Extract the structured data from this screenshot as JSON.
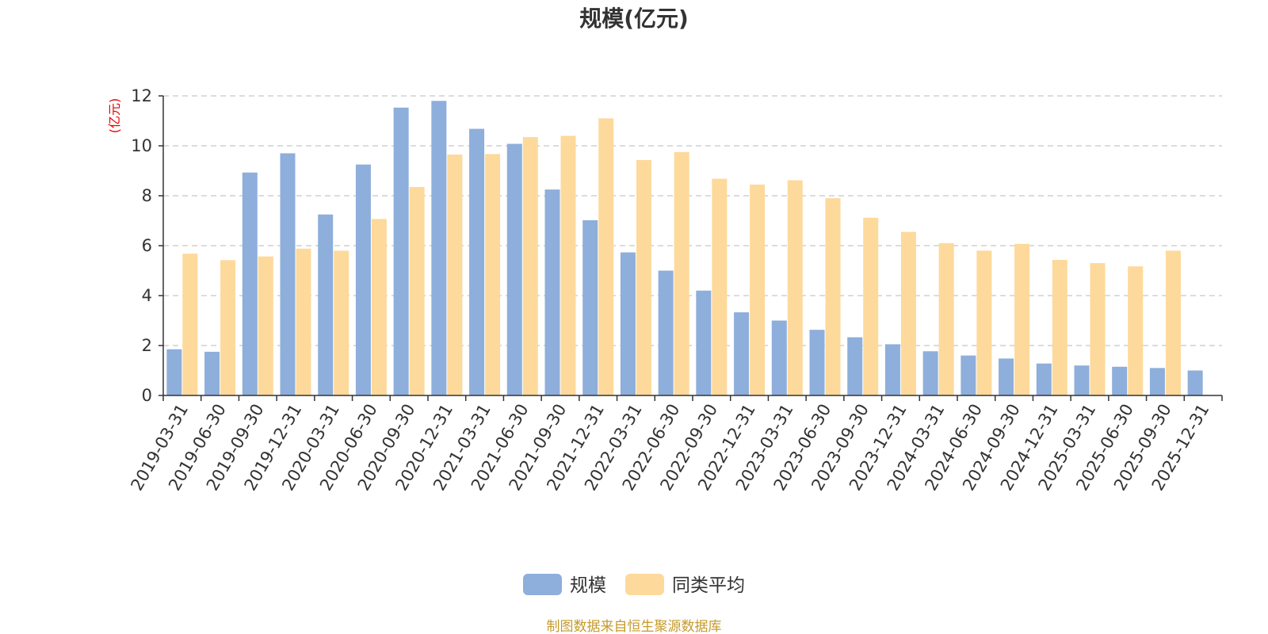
{
  "chart_data": {
    "type": "bar",
    "title": "规模(亿元)",
    "ylabel": "(亿元)",
    "ylim": [
      0,
      12
    ],
    "yticks": [
      "0",
      "2",
      "4",
      "6",
      "8",
      "10",
      "12"
    ],
    "grid": true,
    "legend_position": "bottom-center",
    "categories": [
      "2019-03-31",
      "2019-06-30",
      "2019-09-30",
      "2019-12-31",
      "2020-03-31",
      "2020-06-30",
      "2020-09-30",
      "2020-12-31",
      "2021-03-31",
      "2021-06-30",
      "2021-09-30",
      "2021-12-31",
      "2022-03-31",
      "2022-06-30",
      "2022-09-30",
      "2022-12-31",
      "2023-03-31",
      "2023-06-30",
      "2023-09-30",
      "2023-12-31",
      "2024-03-31",
      "2024-06-30",
      "2024-09-30",
      "2024-12-31",
      "2025-03-31",
      "2025-06-30",
      "2025-09-30",
      "2025-12-31"
    ],
    "series": [
      {
        "name": "规模",
        "color": "#8eaedb",
        "values": [
          1.85,
          1.75,
          8.93,
          9.7,
          7.25,
          9.25,
          11.53,
          11.8,
          10.68,
          10.08,
          8.25,
          7.02,
          5.73,
          5.0,
          4.2,
          3.33,
          3.0,
          2.63,
          2.33,
          2.05,
          1.77,
          1.6,
          1.48,
          1.28,
          1.2,
          1.15,
          1.1,
          1.0
        ]
      },
      {
        "name": "同类平均",
        "color": "#fdd99b",
        "values": [
          5.68,
          5.42,
          5.57,
          5.88,
          5.8,
          7.07,
          8.35,
          9.65,
          9.67,
          10.35,
          10.4,
          11.1,
          9.43,
          9.75,
          8.68,
          8.45,
          8.62,
          7.9,
          7.12,
          6.55,
          6.1,
          5.8,
          6.07,
          5.43,
          5.3,
          5.17,
          5.8,
          null
        ]
      }
    ]
  },
  "source": "制图数据来自恒生聚源数据库"
}
